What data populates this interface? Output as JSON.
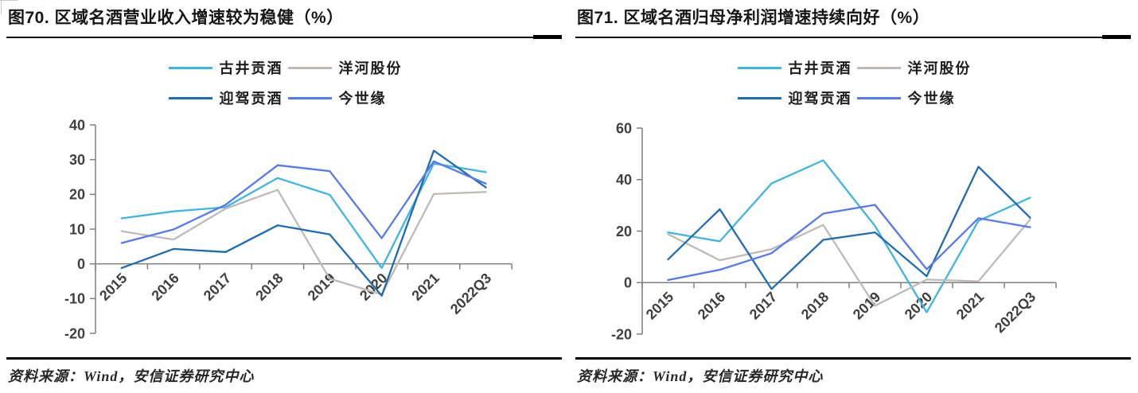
{
  "page": {
    "background": "#ffffff"
  },
  "figures": [
    {
      "title": "图70. 区域名酒营业收入增速较为稳健（%）",
      "source": "资料来源：Wind，安信证券研究中心"
    },
    {
      "title": "图71. 区域名酒归母净利润增速持续向好（%）",
      "source": "资料来源：Wind，安信证券研究中心"
    }
  ],
  "chart_data": [
    {
      "type": "line",
      "title": "图70. 区域名酒营业收入增速较为稳健（%）",
      "xlabel": "",
      "ylabel": "",
      "unit": "%",
      "grid": false,
      "legend_position": "top",
      "categories": [
        "2015",
        "2016",
        "2017",
        "2018",
        "2019",
        "2020",
        "2021",
        "2022Q3"
      ],
      "ylim": [
        -20,
        40
      ],
      "ytick_step": 10,
      "yticks": [
        40,
        30,
        20,
        10,
        0,
        -10,
        -20
      ],
      "series": [
        {
          "name": "古井贡酒",
          "color": "#3EB5E2",
          "values": [
            13.1,
            15.1,
            16.3,
            24.7,
            19.9,
            -1.2,
            28.9,
            26.4
          ]
        },
        {
          "name": "洋河股份",
          "color": "#BFBAB6",
          "values": [
            9.4,
            7.0,
            15.9,
            21.3,
            -4.3,
            -8.8,
            20.1,
            20.7
          ]
        },
        {
          "name": "迎驾贡酒",
          "color": "#1E6DB2",
          "values": [
            -1.2,
            4.3,
            3.4,
            11.1,
            8.5,
            -9.2,
            32.6,
            22.0
          ]
        },
        {
          "name": "今世缘",
          "color": "#5679EE",
          "values": [
            6.0,
            9.9,
            17.0,
            28.4,
            26.7,
            7.4,
            29.5,
            23.1
          ]
        }
      ]
    },
    {
      "type": "line",
      "title": "图71. 区域名酒归母净利润增速持续向好（%）",
      "xlabel": "",
      "ylabel": "",
      "unit": "%",
      "grid": false,
      "legend_position": "top",
      "categories": [
        "2015",
        "2016",
        "2017",
        "2018",
        "2019",
        "2020",
        "2021",
        "2022Q3"
      ],
      "ylim": [
        -20,
        60
      ],
      "ytick_step": 20,
      "yticks": [
        60,
        40,
        20,
        0,
        -20
      ],
      "series": [
        {
          "name": "古井贡酒",
          "color": "#3EB5E2",
          "values": [
            19.5,
            16.0,
            38.5,
            47.5,
            22.0,
            -11.5,
            24.0,
            33.0
          ]
        },
        {
          "name": "洋河股份",
          "color": "#BFBAB6",
          "values": [
            18.8,
            8.7,
            13.0,
            22.4,
            -9.0,
            1.2,
            0.5,
            24.5
          ]
        },
        {
          "name": "迎驾贡酒",
          "color": "#1E6DB2",
          "values": [
            9.0,
            28.5,
            -2.5,
            16.6,
            19.5,
            2.5,
            45.0,
            25.2
          ]
        },
        {
          "name": "今世缘",
          "color": "#5679EE",
          "values": [
            1.0,
            5.0,
            11.4,
            26.8,
            30.2,
            5.2,
            25.0,
            21.5
          ]
        }
      ]
    }
  ],
  "colors": {
    "series_gujing": "#3EB5E2",
    "series_yanghe": "#BFBAB6",
    "series_yingjia": "#1E6DB2",
    "series_jinshiyuan": "#5679EE",
    "axis": "#7f7f7f",
    "tick_label": "#3f3f3f",
    "title_text": "#161616",
    "rule": "#000000"
  }
}
